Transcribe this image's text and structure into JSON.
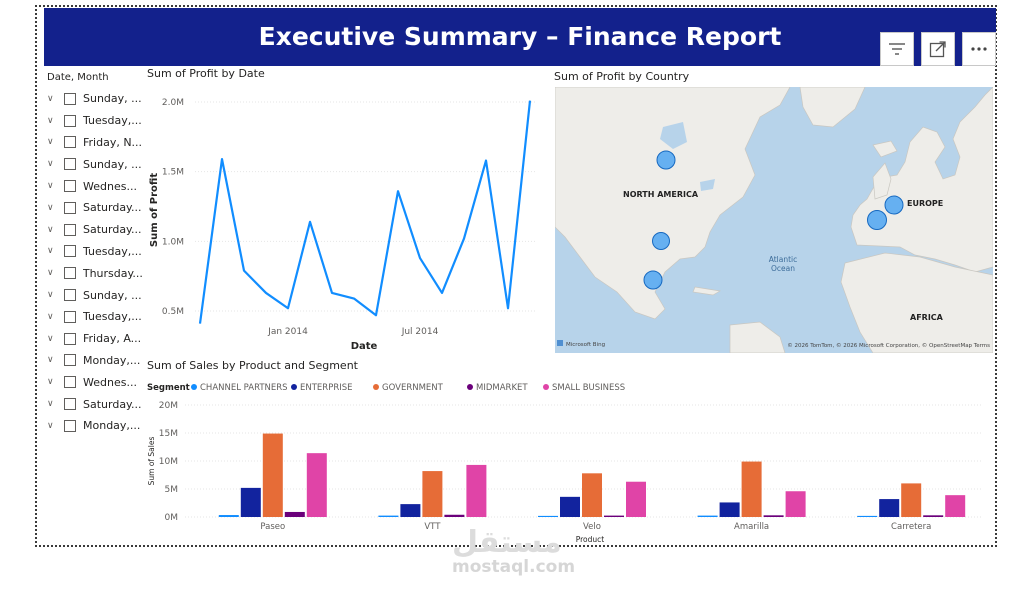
{
  "report": {
    "title": "Executive Summary – Finance Report",
    "toolbar": [
      {
        "name": "filter",
        "icon": "filter-icon"
      },
      {
        "name": "focus-mode",
        "icon": "expand-icon"
      },
      {
        "name": "more-options",
        "icon": "ellipsis-icon"
      }
    ]
  },
  "slicer": {
    "title": "Date, Month",
    "items": [
      "Sunday, ...",
      "Tuesday,...",
      "Friday, N...",
      "Sunday, ...",
      "Wednes...",
      "Saturday...",
      "Saturday...",
      "Tuesday,...",
      "Thursday...",
      "Sunday, ...",
      "Tuesday,...",
      "Friday, A...",
      "Monday,...",
      "Wednes...",
      "Saturday...",
      "Monday,..."
    ]
  },
  "profit_chart_title": "Sum of Profit by Date",
  "map": {
    "title": "Sum of Profit by Country",
    "labels": {
      "north_america": "NORTH AMERICA",
      "europe": "EUROPE",
      "africa": "AFRICA",
      "ocean_1": "Atlantic",
      "ocean_2": "Ocean"
    },
    "logo": "Microsoft Bing",
    "attribution": "© 2026 TomTom, © 2026 Microsoft Corporation, © OpenStreetMap  Terms",
    "bubbles": [
      "Canada",
      "United States of America",
      "Mexico",
      "France",
      "Germany"
    ],
    "colors": {
      "water": "#b7d3ea",
      "land": "#eeede9",
      "bubble": "#56a8f2",
      "bubble_stroke": "#1769c0"
    }
  },
  "sales_chart_title": "Sum of Sales by Product and Segment",
  "legend_label": "Segment",
  "watermark": {
    "arabic": "مستقل",
    "latin": "mostaql.com"
  },
  "chart_data": [
    {
      "type": "line",
      "title": "Sum of Profit by Date",
      "xlabel": "Date",
      "ylabel": "Sum of Profit",
      "x_ticks": [
        "Jan 2014",
        "Jul 2014"
      ],
      "y_ticks": [
        "0.5M",
        "1.0M",
        "1.5M",
        "2.0M"
      ],
      "ylim": [
        0.4,
        2.05
      ],
      "x": [
        "Sep 2013",
        "Oct 2013",
        "Nov 2013",
        "Dec 2013",
        "Jan 2014",
        "Feb 2014",
        "Mar 2014",
        "Apr 2014",
        "May 2014",
        "Jun 2014",
        "Jul 2014",
        "Aug 2014",
        "Sep 2014",
        "Oct 2014",
        "Nov 2014",
        "Dec 2014"
      ],
      "values": [
        0.41,
        1.59,
        0.79,
        0.63,
        0.52,
        1.14,
        0.63,
        0.59,
        0.47,
        1.36,
        0.88,
        0.63,
        1.02,
        1.58,
        0.52,
        2.01
      ],
      "color": "#118dff",
      "grid": "horizontal-dashed"
    },
    {
      "type": "bar",
      "title": "Sum of Sales by Product and Segment",
      "xlabel": "Product",
      "ylabel": "Sum of Sales",
      "legend_title": "Segment",
      "legend_position": "top-left",
      "categories": [
        "Paseo",
        "VTT",
        "Velo",
        "Amarilla",
        "Carretera"
      ],
      "y_ticks": [
        "0M",
        "5M",
        "10M",
        "15M",
        "20M"
      ],
      "ylim": [
        0,
        20
      ],
      "series": [
        {
          "name": "CHANNEL PARTNERS",
          "color": "#118dff",
          "values": [
            0.35,
            0.25,
            0.2,
            0.25,
            0.2
          ]
        },
        {
          "name": "ENTERPRISE",
          "color": "#12239e",
          "values": [
            5.2,
            2.3,
            3.6,
            2.6,
            3.2
          ]
        },
        {
          "name": "GOVERNMENT",
          "color": "#e66c37",
          "values": [
            14.9,
            8.2,
            7.8,
            9.9,
            6.0
          ]
        },
        {
          "name": "MIDMARKET",
          "color": "#6b007b",
          "values": [
            0.9,
            0.4,
            0.25,
            0.3,
            0.3
          ]
        },
        {
          "name": "SMALL BUSINESS",
          "color": "#e044a7",
          "values": [
            11.4,
            9.3,
            6.3,
            4.6,
            3.9
          ]
        }
      ],
      "grid": "horizontal-dashed"
    }
  ]
}
